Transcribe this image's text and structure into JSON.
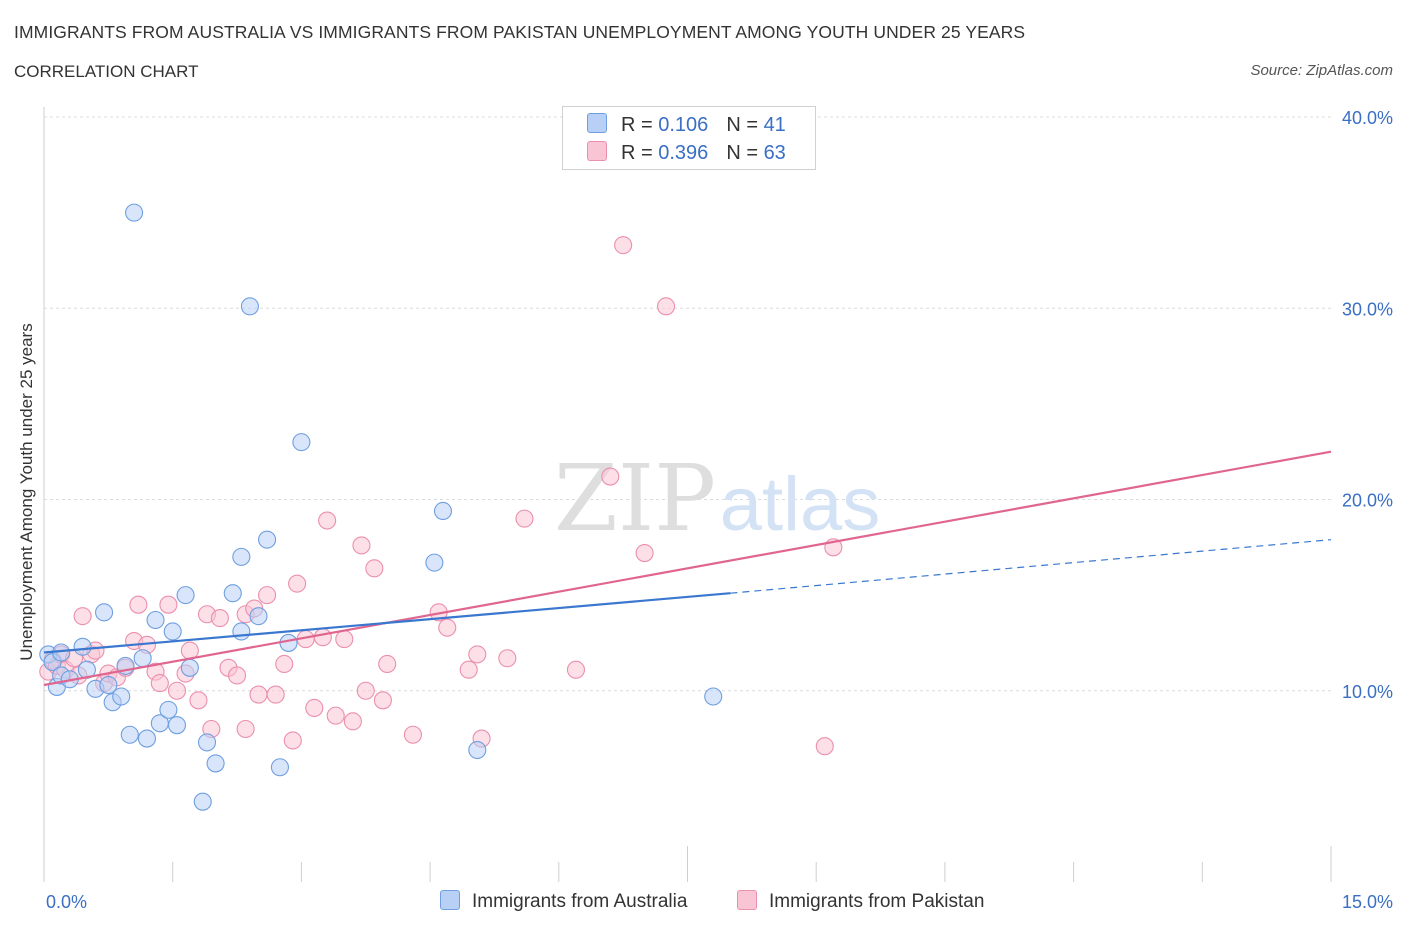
{
  "header": {
    "title": "IMMIGRANTS FROM AUSTRALIA VS IMMIGRANTS FROM PAKISTAN UNEMPLOYMENT AMONG YOUTH UNDER 25 YEARS",
    "subtitle": "CORRELATION CHART",
    "source": "Source: ZipAtlas.com"
  },
  "legend_top": {
    "australia": {
      "r_label": "R = ",
      "r_value": "0.106",
      "n_label": "N = ",
      "n_value": "41"
    },
    "pakistan": {
      "r_label": "R = ",
      "r_value": "0.396",
      "n_label": "N = ",
      "n_value": "63"
    }
  },
  "legend_bottom": {
    "australia": "Immigrants from Australia",
    "pakistan": "Immigrants from Pakistan"
  },
  "watermark": {
    "zip": "ZIP",
    "atlas": "atlas"
  },
  "colors": {
    "australia_fill": "#b8d0f5",
    "australia_stroke": "#6f9fe0",
    "australia_line": "#3a78d0",
    "pakistan_fill": "#f9c4d4",
    "pakistan_stroke": "#eb8fae",
    "pakistan_line": "#e0668f",
    "tick_text": "#3a6fc4"
  },
  "chart_data": {
    "type": "scatter",
    "title": "IMMIGRANTS FROM AUSTRALIA VS IMMIGRANTS FROM PAKISTAN UNEMPLOYMENT AMONG YOUTH UNDER 25 YEARS",
    "xlabel": "",
    "ylabel": "Unemployment Among Youth under 25 years",
    "xlim": [
      0,
      15
    ],
    "ylim": [
      0,
      40
    ],
    "x_tick_labels": [
      {
        "value": 0,
        "label": "0.0%"
      },
      {
        "value": 15,
        "label": "15.0%"
      }
    ],
    "y_tick_labels": [
      {
        "value": 10,
        "label": "10.0%"
      },
      {
        "value": 20,
        "label": "20.0%"
      },
      {
        "value": 30,
        "label": "30.0%"
      },
      {
        "value": 40,
        "label": "40.0%"
      }
    ],
    "series": [
      {
        "name": "Immigrants from Australia",
        "R": 0.106,
        "N": 41,
        "trend": {
          "x0": 0,
          "y0": 12.0,
          "x1": 8.0,
          "y1": 15.1,
          "dashed_to_x": 15,
          "dashed_to_y": 17.9
        },
        "points": [
          [
            0.05,
            11.9
          ],
          [
            0.1,
            11.5
          ],
          [
            0.15,
            10.2
          ],
          [
            0.2,
            10.8
          ],
          [
            0.3,
            10.6
          ],
          [
            0.45,
            12.3
          ],
          [
            0.5,
            11.1
          ],
          [
            0.6,
            10.1
          ],
          [
            0.7,
            14.1
          ],
          [
            0.75,
            10.3
          ],
          [
            0.8,
            9.4
          ],
          [
            0.9,
            9.7
          ],
          [
            0.95,
            11.3
          ],
          [
            1.0,
            7.7
          ],
          [
            1.05,
            35.0
          ],
          [
            1.15,
            11.7
          ],
          [
            1.2,
            7.5
          ],
          [
            1.3,
            13.7
          ],
          [
            1.35,
            8.3
          ],
          [
            1.45,
            9.0
          ],
          [
            1.5,
            13.1
          ],
          [
            1.55,
            8.2
          ],
          [
            1.65,
            15.0
          ],
          [
            1.7,
            11.2
          ],
          [
            1.85,
            4.2
          ],
          [
            1.9,
            7.3
          ],
          [
            2.0,
            6.2
          ],
          [
            2.2,
            15.1
          ],
          [
            2.3,
            13.1
          ],
          [
            2.3,
            17.0
          ],
          [
            2.4,
            30.1
          ],
          [
            2.5,
            13.9
          ],
          [
            2.6,
            17.9
          ],
          [
            2.75,
            6.0
          ],
          [
            2.85,
            12.5
          ],
          [
            3.0,
            23.0
          ],
          [
            4.55,
            16.7
          ],
          [
            4.65,
            19.4
          ],
          [
            5.05,
            6.9
          ],
          [
            7.8,
            9.7
          ],
          [
            0.2,
            12.0
          ]
        ]
      },
      {
        "name": "Immigrants from Pakistan",
        "R": 0.396,
        "N": 63,
        "trend": {
          "x0": 0,
          "y0": 10.3,
          "x1": 15,
          "y1": 22.5
        },
        "points": [
          [
            0.05,
            11.0
          ],
          [
            0.1,
            11.6
          ],
          [
            0.15,
            11.3
          ],
          [
            0.2,
            11.9
          ],
          [
            0.25,
            11.1
          ],
          [
            0.35,
            11.7
          ],
          [
            0.4,
            10.8
          ],
          [
            0.45,
            13.9
          ],
          [
            0.55,
            11.9
          ],
          [
            0.6,
            12.1
          ],
          [
            0.7,
            10.4
          ],
          [
            0.75,
            10.9
          ],
          [
            0.85,
            10.7
          ],
          [
            0.95,
            11.2
          ],
          [
            1.05,
            12.6
          ],
          [
            1.1,
            14.5
          ],
          [
            1.2,
            12.4
          ],
          [
            1.3,
            11.0
          ],
          [
            1.35,
            10.4
          ],
          [
            1.45,
            14.5
          ],
          [
            1.55,
            10.0
          ],
          [
            1.65,
            10.9
          ],
          [
            1.7,
            12.1
          ],
          [
            1.8,
            9.5
          ],
          [
            1.9,
            14.0
          ],
          [
            1.95,
            8.0
          ],
          [
            2.05,
            13.8
          ],
          [
            2.15,
            11.2
          ],
          [
            2.25,
            10.8
          ],
          [
            2.35,
            14.0
          ],
          [
            2.35,
            8.0
          ],
          [
            2.45,
            14.3
          ],
          [
            2.5,
            9.8
          ],
          [
            2.6,
            15.0
          ],
          [
            2.7,
            9.8
          ],
          [
            2.8,
            11.4
          ],
          [
            2.9,
            7.4
          ],
          [
            2.95,
            15.6
          ],
          [
            3.05,
            12.7
          ],
          [
            3.15,
            9.1
          ],
          [
            3.25,
            12.8
          ],
          [
            3.3,
            18.9
          ],
          [
            3.4,
            8.7
          ],
          [
            3.5,
            12.7
          ],
          [
            3.6,
            8.4
          ],
          [
            3.7,
            17.6
          ],
          [
            3.75,
            10.0
          ],
          [
            3.85,
            16.4
          ],
          [
            3.95,
            9.5
          ],
          [
            4.0,
            11.4
          ],
          [
            4.3,
            7.7
          ],
          [
            4.6,
            14.1
          ],
          [
            4.7,
            13.3
          ],
          [
            4.95,
            11.1
          ],
          [
            5.05,
            11.9
          ],
          [
            5.1,
            7.5
          ],
          [
            5.4,
            11.7
          ],
          [
            5.6,
            19.0
          ],
          [
            6.2,
            11.1
          ],
          [
            6.6,
            21.2
          ],
          [
            6.75,
            33.3
          ],
          [
            7.0,
            17.2
          ],
          [
            7.25,
            30.1
          ]
        ],
        "outliers": [
          [
            9.2,
            17.5
          ],
          [
            9.1,
            7.1
          ]
        ]
      }
    ]
  }
}
